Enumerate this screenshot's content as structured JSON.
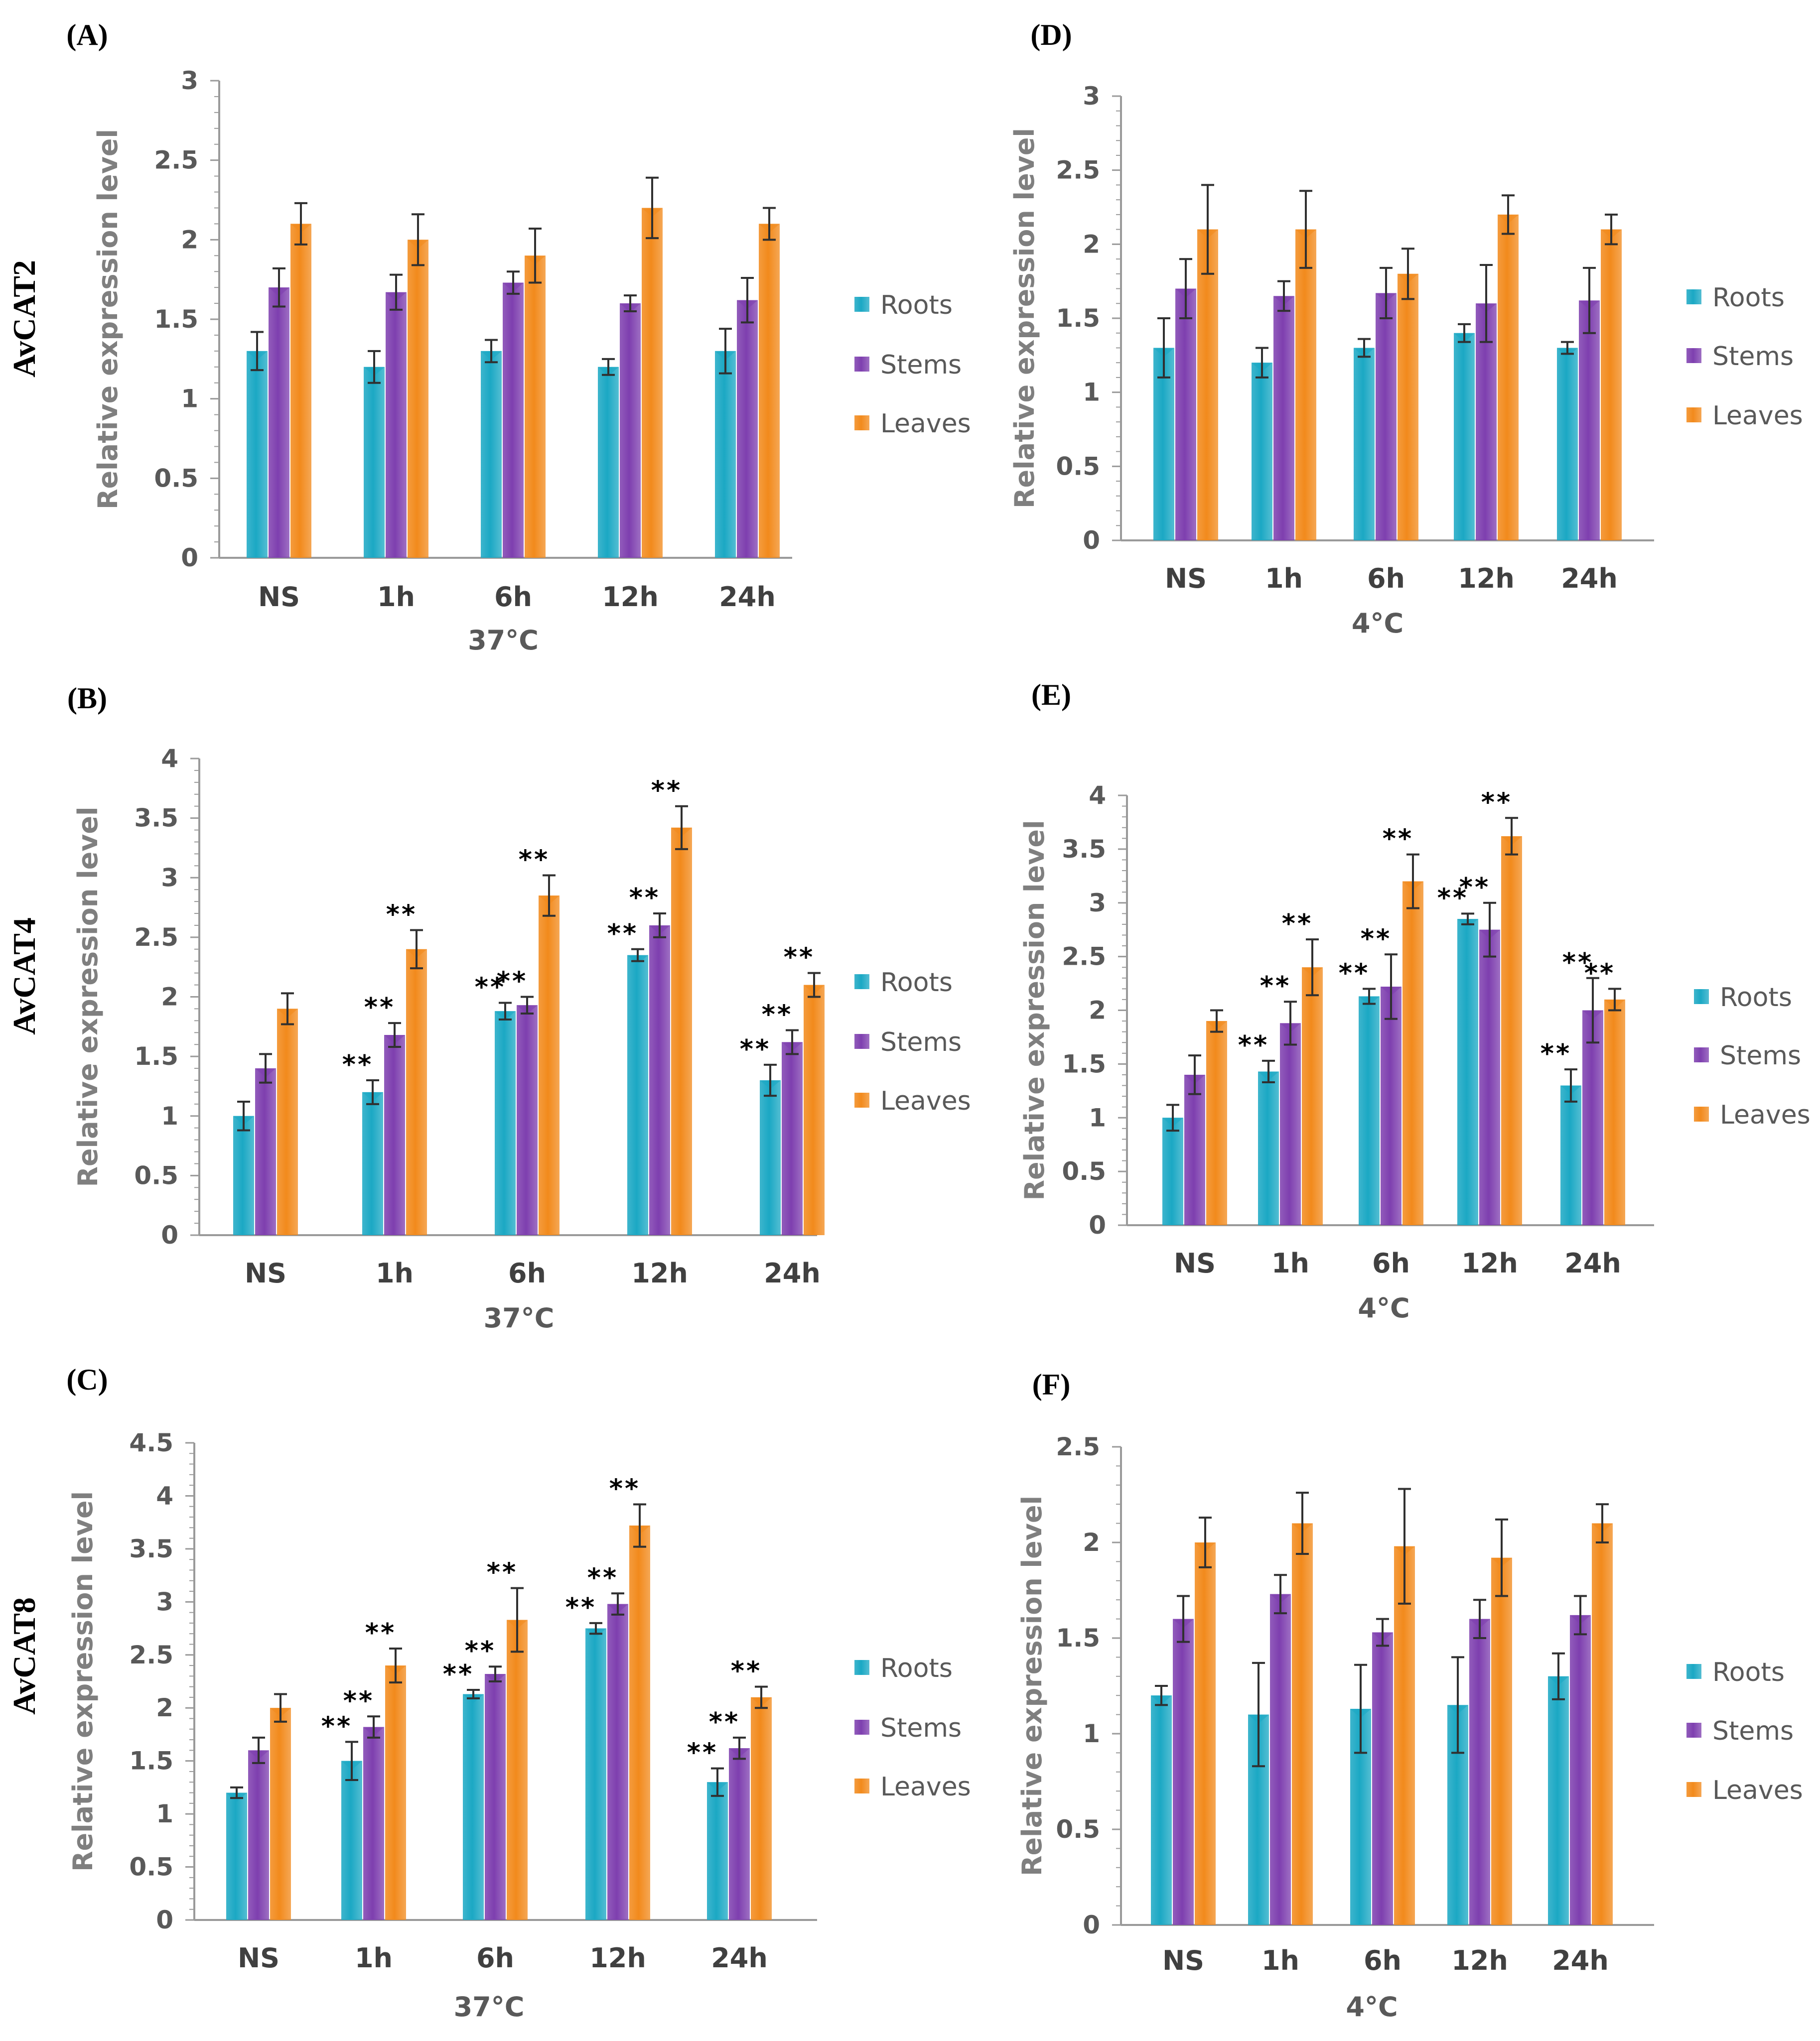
{
  "colors": {
    "Roots": "#1BA8C4",
    "Stems": "#7E3FAF",
    "Leaves": "#F28A1C",
    "axis": "#9a9a9a",
    "error": "#303030"
  },
  "chart_data": [
    {
      "id": "A",
      "panel_label": "(A)",
      "gene": "AvCAT2",
      "type": "bar",
      "title": "",
      "xlabel": "37°C",
      "ylabel": "Relative expression level",
      "ylim": [
        0,
        3
      ],
      "ytick_step": 0.5,
      "yticks": [
        "0",
        "0.5",
        "1",
        "1.5",
        "2",
        "2.5",
        "3"
      ],
      "categories": [
        "NS",
        "1h",
        "6h",
        "12h",
        "24h"
      ],
      "legend": [
        "Roots",
        "Stems",
        "Leaves"
      ],
      "series": [
        {
          "name": "Roots",
          "values": [
            1.3,
            1.2,
            1.3,
            1.2,
            1.3
          ],
          "errors": [
            0.12,
            0.1,
            0.07,
            0.05,
            0.14
          ],
          "sig": [
            "",
            "",
            "",
            "",
            ""
          ]
        },
        {
          "name": "Stems",
          "values": [
            1.7,
            1.67,
            1.73,
            1.6,
            1.62
          ],
          "errors": [
            0.12,
            0.11,
            0.07,
            0.05,
            0.14
          ],
          "sig": [
            "",
            "",
            "",
            "",
            ""
          ]
        },
        {
          "name": "Leaves",
          "values": [
            2.1,
            2.0,
            1.9,
            2.2,
            2.1
          ],
          "errors": [
            0.13,
            0.16,
            0.17,
            0.19,
            0.1
          ],
          "sig": [
            "",
            "",
            "",
            "",
            ""
          ]
        }
      ]
    },
    {
      "id": "B",
      "panel_label": "(B)",
      "gene": "AvCAT4",
      "type": "bar",
      "title": "",
      "xlabel": "37°C",
      "ylabel": "Relative expression level",
      "ylim": [
        0,
        4
      ],
      "ytick_step": 0.5,
      "yticks": [
        "0",
        "0.5",
        "1",
        "1.5",
        "2",
        "2.5",
        "3",
        "3.5",
        "4"
      ],
      "categories": [
        "NS",
        "1h",
        "6h",
        "12h",
        "24h"
      ],
      "legend": [
        "Roots",
        "Stems",
        "Leaves"
      ],
      "series": [
        {
          "name": "Roots",
          "values": [
            1.0,
            1.2,
            1.88,
            2.35,
            1.3
          ],
          "errors": [
            0.12,
            0.1,
            0.07,
            0.05,
            0.13
          ],
          "sig": [
            "",
            "**",
            "**",
            "**",
            "**"
          ]
        },
        {
          "name": "Stems",
          "values": [
            1.4,
            1.68,
            1.93,
            2.6,
            1.62
          ],
          "errors": [
            0.12,
            0.1,
            0.07,
            0.1,
            0.1
          ],
          "sig": [
            "",
            "**",
            "**",
            "**",
            "**"
          ]
        },
        {
          "name": "Leaves",
          "values": [
            1.9,
            2.4,
            2.85,
            3.42,
            2.1
          ],
          "errors": [
            0.13,
            0.16,
            0.17,
            0.18,
            0.1
          ],
          "sig": [
            "",
            "**",
            "**",
            "**",
            "**"
          ]
        }
      ]
    },
    {
      "id": "C",
      "panel_label": "(C)",
      "gene": "AvCAT8",
      "type": "bar",
      "title": "",
      "xlabel": "37°C",
      "ylabel": "Relative expression level",
      "ylim": [
        0,
        4.5
      ],
      "ytick_step": 0.5,
      "yticks": [
        "0",
        "0.5",
        "1",
        "1.5",
        "2",
        "2.5",
        "3",
        "3.5",
        "4",
        "4.5"
      ],
      "categories": [
        "NS",
        "1h",
        "6h",
        "12h",
        "24h"
      ],
      "legend": [
        "Roots",
        "Stems",
        "Leaves"
      ],
      "series": [
        {
          "name": "Roots",
          "values": [
            1.2,
            1.5,
            2.13,
            2.75,
            1.3
          ],
          "errors": [
            0.05,
            0.18,
            0.04,
            0.05,
            0.13
          ],
          "sig": [
            "",
            "**",
            "**",
            "**",
            "**"
          ]
        },
        {
          "name": "Stems",
          "values": [
            1.6,
            1.82,
            2.32,
            2.98,
            1.62
          ],
          "errors": [
            0.12,
            0.1,
            0.07,
            0.1,
            0.1
          ],
          "sig": [
            "",
            "**",
            "**",
            "**",
            "**"
          ]
        },
        {
          "name": "Leaves",
          "values": [
            2.0,
            2.4,
            2.83,
            3.72,
            2.1
          ],
          "errors": [
            0.13,
            0.16,
            0.3,
            0.2,
            0.1
          ],
          "sig": [
            "",
            "**",
            "**",
            "**",
            "**"
          ]
        }
      ]
    },
    {
      "id": "D",
      "panel_label": "(D)",
      "gene": "",
      "type": "bar",
      "title": "",
      "xlabel": "4°C",
      "ylabel": "Relative expression level",
      "ylim": [
        0,
        3
      ],
      "ytick_step": 0.5,
      "yticks": [
        "0",
        "0.5",
        "1",
        "1.5",
        "2",
        "2.5",
        "3"
      ],
      "categories": [
        "NS",
        "1h",
        "6h",
        "12h",
        "24h"
      ],
      "legend": [
        "Roots",
        "Stems",
        "Leaves"
      ],
      "series": [
        {
          "name": "Roots",
          "values": [
            1.3,
            1.2,
            1.3,
            1.4,
            1.3
          ],
          "errors": [
            0.2,
            0.1,
            0.06,
            0.06,
            0.04
          ],
          "sig": [
            "",
            "",
            "",
            "",
            ""
          ]
        },
        {
          "name": "Stems",
          "values": [
            1.7,
            1.65,
            1.67,
            1.6,
            1.62
          ],
          "errors": [
            0.2,
            0.1,
            0.17,
            0.26,
            0.22
          ],
          "sig": [
            "",
            "",
            "",
            "",
            ""
          ]
        },
        {
          "name": "Leaves",
          "values": [
            2.1,
            2.1,
            1.8,
            2.2,
            2.1
          ],
          "errors": [
            0.3,
            0.26,
            0.17,
            0.13,
            0.1
          ],
          "sig": [
            "",
            "",
            "",
            "",
            ""
          ]
        }
      ]
    },
    {
      "id": "E",
      "panel_label": "(E)",
      "gene": "",
      "type": "bar",
      "title": "",
      "xlabel": "4°C",
      "ylabel": "Relative expression level",
      "ylim": [
        0,
        4
      ],
      "ytick_step": 0.5,
      "yticks": [
        "0",
        "0.5",
        "1",
        "1.5",
        "2",
        "2.5",
        "3",
        "3.5",
        "4"
      ],
      "categories": [
        "NS",
        "1h",
        "6h",
        "12h",
        "24h"
      ],
      "legend": [
        "Roots",
        "Stems",
        "Leaves"
      ],
      "series": [
        {
          "name": "Roots",
          "values": [
            1.0,
            1.43,
            2.13,
            2.85,
            1.3
          ],
          "errors": [
            0.12,
            0.1,
            0.07,
            0.05,
            0.15
          ],
          "sig": [
            "",
            "**",
            "**",
            "**",
            "**"
          ]
        },
        {
          "name": "Stems",
          "values": [
            1.4,
            1.88,
            2.22,
            2.75,
            2.0
          ],
          "errors": [
            0.18,
            0.2,
            0.3,
            0.25,
            0.3
          ],
          "sig": [
            "",
            "**",
            "**",
            "**",
            "**"
          ]
        },
        {
          "name": "Leaves",
          "values": [
            1.9,
            2.4,
            3.2,
            3.62,
            2.1
          ],
          "errors": [
            0.1,
            0.26,
            0.25,
            0.17,
            0.1
          ],
          "sig": [
            "",
            "**",
            "**",
            "**",
            "**"
          ]
        }
      ]
    },
    {
      "id": "F",
      "panel_label": "(F)",
      "gene": "",
      "type": "bar",
      "title": "",
      "xlabel": "4°C",
      "ylabel": "Relative expression level",
      "ylim": [
        0,
        2.5
      ],
      "ytick_step": 0.5,
      "yticks": [
        "0",
        "0.5",
        "1",
        "1.5",
        "2",
        "2.5"
      ],
      "categories": [
        "NS",
        "1h",
        "6h",
        "12h",
        "24h"
      ],
      "legend": [
        "Roots",
        "Stems",
        "Leaves"
      ],
      "series": [
        {
          "name": "Roots",
          "values": [
            1.2,
            1.1,
            1.13,
            1.15,
            1.3
          ],
          "errors": [
            0.05,
            0.27,
            0.23,
            0.25,
            0.12
          ],
          "sig": [
            "",
            "",
            "",
            "",
            ""
          ]
        },
        {
          "name": "Stems",
          "values": [
            1.6,
            1.73,
            1.53,
            1.6,
            1.62
          ],
          "errors": [
            0.12,
            0.1,
            0.07,
            0.1,
            0.1
          ],
          "sig": [
            "",
            "",
            "",
            "",
            ""
          ]
        },
        {
          "name": "Leaves",
          "values": [
            2.0,
            2.1,
            1.98,
            1.92,
            2.1
          ],
          "errors": [
            0.13,
            0.16,
            0.3,
            0.2,
            0.1
          ],
          "sig": [
            "",
            "",
            "",
            "",
            ""
          ]
        }
      ]
    }
  ]
}
